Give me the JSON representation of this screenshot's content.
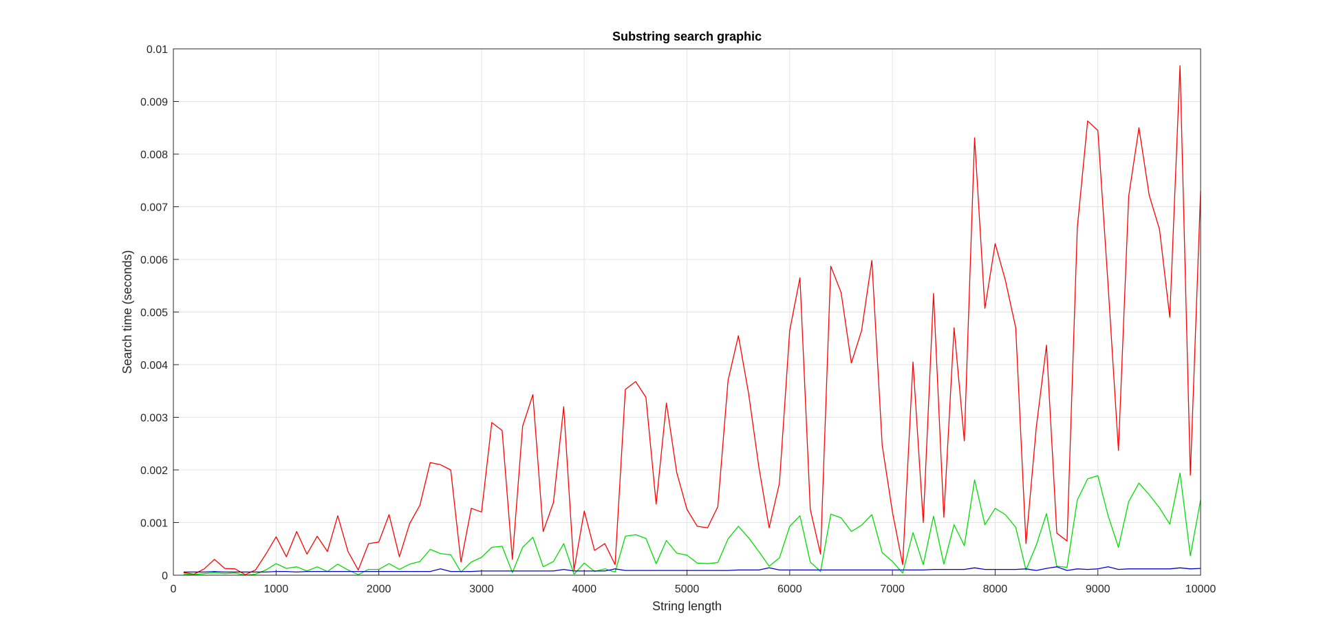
{
  "chart_data": {
    "type": "line",
    "title": "Substring search graphic",
    "xlabel": "String length",
    "ylabel": "Search time (seconds)",
    "xlim": [
      0,
      10000
    ],
    "ylim": [
      0,
      0.01
    ],
    "xticks": [
      0,
      1000,
      2000,
      3000,
      4000,
      5000,
      6000,
      7000,
      8000,
      9000,
      10000
    ],
    "yticks": [
      0,
      0.001,
      0.002,
      0.003,
      0.004,
      0.005,
      0.006,
      0.007,
      0.008,
      0.009,
      0.01
    ],
    "xtick_labels": [
      "0",
      "1000",
      "2000",
      "3000",
      "4000",
      "5000",
      "6000",
      "7000",
      "8000",
      "9000",
      "10000"
    ],
    "ytick_labels": [
      "0",
      "0.001",
      "0.002",
      "0.003",
      "0.004",
      "0.005",
      "0.006",
      "0.007",
      "0.008",
      "0.009",
      "0.01"
    ],
    "grid": true,
    "x": [
      100,
      200,
      300,
      400,
      500,
      600,
      700,
      800,
      900,
      1000,
      1100,
      1200,
      1300,
      1400,
      1500,
      1600,
      1700,
      1800,
      1900,
      2000,
      2100,
      2200,
      2300,
      2400,
      2500,
      2600,
      2700,
      2800,
      2900,
      3000,
      3100,
      3200,
      3300,
      3400,
      3500,
      3600,
      3700,
      3800,
      3900,
      4000,
      4100,
      4200,
      4300,
      4400,
      4500,
      4600,
      4700,
      4800,
      4900,
      5000,
      5100,
      5200,
      5300,
      5400,
      5500,
      5600,
      5700,
      5800,
      5900,
      6000,
      6100,
      6200,
      6300,
      6400,
      6500,
      6600,
      6700,
      6800,
      6900,
      7000,
      7100,
      7200,
      7300,
      7400,
      7500,
      7600,
      7700,
      7800,
      7900,
      8000,
      8100,
      8200,
      8300,
      8400,
      8500,
      8600,
      8700,
      8800,
      8900,
      9000,
      9100,
      9200,
      9300,
      9400,
      9500,
      9600,
      9700,
      9800,
      9900,
      10000
    ],
    "series": [
      {
        "color": "#ff0000",
        "values": [
          5e-05,
          2e-05,
          0.00012,
          0.0003,
          0.00013,
          0.00012,
          1e-05,
          0.0001,
          0.0004,
          0.00073,
          0.00035,
          0.00083,
          0.0004,
          0.00074,
          0.00045,
          0.00113,
          0.00045,
          0.0001,
          0.0006,
          0.00063,
          0.00115,
          0.00035,
          0.00098,
          0.00133,
          0.00214,
          0.0021,
          0.002,
          0.00025,
          0.00127,
          0.0012,
          0.0029,
          0.00275,
          0.0003,
          0.00283,
          0.00343,
          0.00083,
          0.00138,
          0.0032,
          0.0001,
          0.00122,
          0.00047,
          0.0006,
          0.0002,
          0.00353,
          0.00368,
          0.00338,
          0.00135,
          0.00327,
          0.00195,
          0.00125,
          0.00093,
          0.0009,
          0.0013,
          0.0037,
          0.00455,
          0.00345,
          0.00205,
          0.0009,
          0.00175,
          0.00465,
          0.00565,
          0.00125,
          0.0004,
          0.00587,
          0.00537,
          0.00403,
          0.00465,
          0.00598,
          0.00247,
          0.0012,
          0.0002,
          0.00405,
          0.001,
          0.00535,
          0.0011,
          0.0047,
          0.00255,
          0.00831,
          0.00507,
          0.0063,
          0.0056,
          0.0047,
          0.0006,
          0.0028,
          0.00437,
          0.0008,
          0.00065,
          0.0066,
          0.00863,
          0.00845,
          0.0055,
          0.00237,
          0.0072,
          0.0085,
          0.00722,
          0.00657,
          0.0049,
          0.00968,
          0.0019,
          0.0073
        ]
      },
      {
        "color": "#00dd00",
        "values": [
          2e-05,
          1e-05,
          3e-05,
          5e-05,
          3e-05,
          4e-05,
          0.0,
          2e-05,
          0.0001,
          0.00022,
          0.00013,
          0.00016,
          8e-05,
          0.00016,
          7e-05,
          0.00021,
          0.0001,
          1e-05,
          0.00011,
          0.00011,
          0.00022,
          0.00011,
          0.00021,
          0.00026,
          0.00049,
          0.00041,
          0.00039,
          6e-05,
          0.00025,
          0.00034,
          0.00053,
          0.00055,
          5e-05,
          0.00053,
          0.00072,
          0.00016,
          0.00026,
          0.0006,
          2e-05,
          0.00023,
          7e-05,
          0.00012,
          6e-05,
          0.00074,
          0.00077,
          0.0007,
          0.00022,
          0.00066,
          0.00042,
          0.00038,
          0.00023,
          0.00022,
          0.00024,
          0.00069,
          0.00093,
          0.00071,
          0.00045,
          0.00017,
          0.00033,
          0.00093,
          0.00113,
          0.00025,
          7e-05,
          0.00116,
          0.00109,
          0.00083,
          0.00095,
          0.00115,
          0.00043,
          0.00026,
          4e-05,
          0.00081,
          0.0002,
          0.00112,
          0.00021,
          0.00096,
          0.00056,
          0.00181,
          0.00096,
          0.00127,
          0.00115,
          0.00091,
          0.0001,
          0.00057,
          0.00117,
          0.00017,
          0.00015,
          0.00143,
          0.00183,
          0.00189,
          0.00113,
          0.00053,
          0.0014,
          0.00175,
          0.00153,
          0.00128,
          0.00097,
          0.00194,
          0.00037,
          0.00143
        ]
      },
      {
        "color": "#0000cc",
        "values": [
          6e-05,
          6e-05,
          6e-05,
          7e-05,
          6e-05,
          6e-05,
          6e-05,
          6e-05,
          6e-05,
          7e-05,
          7e-05,
          6e-05,
          7e-05,
          7e-05,
          7e-05,
          7e-05,
          7e-05,
          7e-05,
          7e-05,
          7e-05,
          7e-05,
          7e-05,
          7e-05,
          7e-05,
          7e-05,
          0.00012,
          7e-05,
          7e-05,
          7e-05,
          8e-05,
          8e-05,
          8e-05,
          8e-05,
          8e-05,
          8e-05,
          8e-05,
          8e-05,
          0.00011,
          8e-05,
          8e-05,
          8e-05,
          8e-05,
          0.00012,
          9e-05,
          9e-05,
          9e-05,
          9e-05,
          9e-05,
          9e-05,
          9e-05,
          9e-05,
          9e-05,
          9e-05,
          9e-05,
          0.0001,
          0.0001,
          0.0001,
          0.00014,
          0.0001,
          0.0001,
          0.0001,
          0.0001,
          0.0001,
          0.0001,
          0.0001,
          0.0001,
          0.0001,
          0.0001,
          0.0001,
          0.0001,
          0.0001,
          0.0001,
          0.0001,
          0.00011,
          0.00011,
          0.00011,
          0.00011,
          0.00014,
          0.00011,
          0.00011,
          0.00011,
          0.00011,
          0.00012,
          9e-05,
          0.00013,
          0.00016,
          9e-05,
          0.00012,
          0.00011,
          0.00012,
          0.00016,
          0.00011,
          0.00012,
          0.00012,
          0.00012,
          0.00012,
          0.00012,
          0.00014,
          0.00012,
          0.00013
        ]
      }
    ]
  }
}
